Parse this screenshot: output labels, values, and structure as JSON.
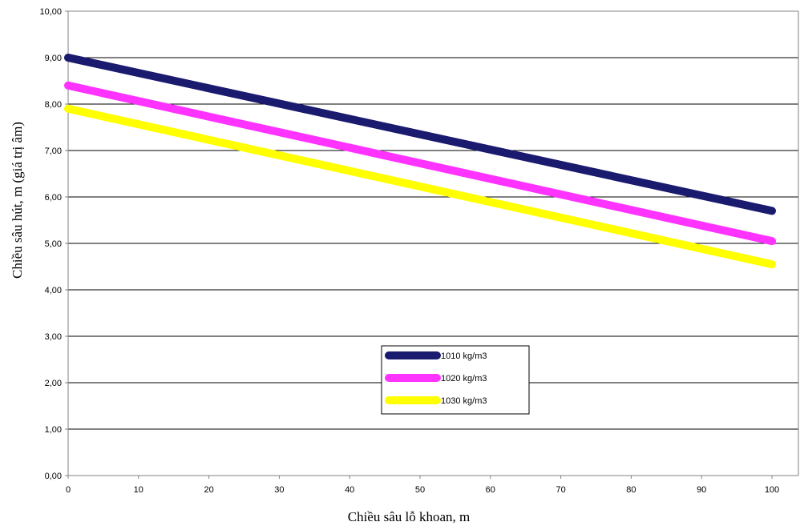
{
  "chart_data": {
    "type": "line",
    "title": "",
    "xlabel": "Chiều sâu lỗ khoan, m",
    "ylabel": "Chiều sâu hút, m (giá trị âm)",
    "x": [
      0,
      100
    ],
    "xlim": [
      0,
      100
    ],
    "ylim": [
      0,
      10
    ],
    "x_ticks": [
      "0",
      "10",
      "20",
      "30",
      "40",
      "50",
      "60",
      "70",
      "80",
      "90",
      "100"
    ],
    "y_ticks": [
      "0,00",
      "1,00",
      "2,00",
      "3,00",
      "4,00",
      "5,00",
      "6,00",
      "7,00",
      "8,00",
      "9,00",
      "10,00"
    ],
    "grid": "horizontal",
    "legend_position": "center-bottom",
    "series": [
      {
        "name": "1010 kg/m3",
        "color": "#1a1a6e",
        "values": [
          9.0,
          5.7
        ]
      },
      {
        "name": "1020 kg/m3",
        "color": "#ff33ff",
        "values": [
          8.4,
          5.05
        ]
      },
      {
        "name": "1030 kg/m3",
        "color": "#ffff00",
        "values": [
          7.9,
          4.55
        ]
      }
    ]
  }
}
